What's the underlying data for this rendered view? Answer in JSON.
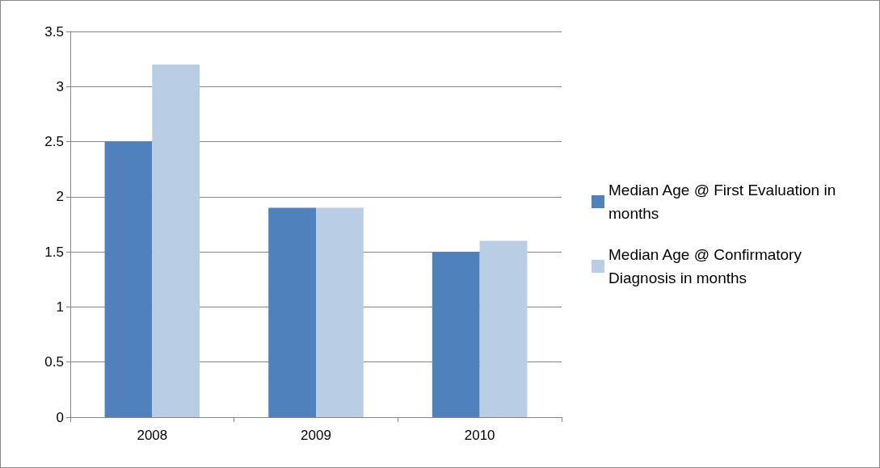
{
  "chart_data": {
    "type": "bar",
    "categories": [
      "2008",
      "2009",
      "2010"
    ],
    "series": [
      {
        "name": "Median Age @ First Evaluation in months",
        "color": "#4f81bd",
        "values": [
          2.5,
          1.9,
          1.5
        ]
      },
      {
        "name": "Median Age @ Confirmatory Diagnosis in months",
        "color": "#b9cde5",
        "values": [
          3.2,
          1.9,
          1.6
        ]
      }
    ],
    "ylim": [
      0,
      3.5
    ],
    "yticks": [
      0,
      0.5,
      1,
      1.5,
      2,
      2.5,
      3,
      3.5
    ],
    "grid": "y",
    "legend": "right"
  }
}
